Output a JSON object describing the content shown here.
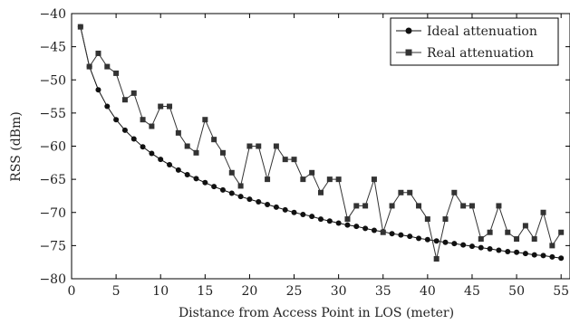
{
  "chart_data": {
    "type": "line",
    "xlabel": "Distance from Access Point in LOS (meter)",
    "ylabel": "RSS (dBm)",
    "xlim": [
      0,
      56
    ],
    "ylim": [
      -80,
      -40
    ],
    "xticks": [
      0,
      5,
      10,
      15,
      20,
      25,
      30,
      35,
      40,
      45,
      50,
      55
    ],
    "yticks": [
      -80,
      -75,
      -70,
      -65,
      -60,
      -55,
      -50,
      -45,
      -40
    ],
    "xtick_labels": [
      "0",
      "5",
      "10",
      "15",
      "20",
      "25",
      "30",
      "35",
      "40",
      "45",
      "50",
      "55"
    ],
    "ytick_labels": [
      "−80",
      "−75",
      "−70",
      "−65",
      "−60",
      "−55",
      "−50",
      "−45",
      "−40"
    ],
    "grid": false,
    "legend_position": "top-right",
    "x": [
      1,
      2,
      3,
      4,
      5,
      6,
      7,
      8,
      9,
      10,
      11,
      12,
      13,
      14,
      15,
      16,
      17,
      18,
      19,
      20,
      21,
      22,
      23,
      24,
      25,
      26,
      27,
      28,
      29,
      30,
      31,
      32,
      33,
      34,
      35,
      36,
      37,
      38,
      39,
      40,
      41,
      42,
      43,
      44,
      45,
      46,
      47,
      48,
      49,
      50,
      51,
      52,
      53,
      54,
      55
    ],
    "series": [
      {
        "name": "Ideal attenuation",
        "marker": "circle",
        "color": "#111111",
        "values": [
          -42.0,
          -48.0,
          -51.5,
          -54.0,
          -56.0,
          -57.6,
          -58.9,
          -60.1,
          -61.1,
          -62.0,
          -62.8,
          -63.6,
          -64.3,
          -64.9,
          -65.5,
          -66.1,
          -66.6,
          -67.1,
          -67.6,
          -68.0,
          -68.4,
          -68.8,
          -69.2,
          -69.6,
          -70.0,
          -70.3,
          -70.6,
          -71.0,
          -71.3,
          -71.6,
          -71.9,
          -72.1,
          -72.4,
          -72.7,
          -72.9,
          -73.2,
          -73.4,
          -73.6,
          -73.9,
          -74.1,
          -74.3,
          -74.5,
          -74.7,
          -74.9,
          -75.1,
          -75.3,
          -75.5,
          -75.7,
          -75.9,
          -76.0,
          -76.2,
          -76.4,
          -76.5,
          -76.7,
          -76.9
        ]
      },
      {
        "name": "Real attenuation",
        "marker": "square",
        "color": "#333333",
        "values": [
          -42,
          -48,
          -46,
          -48,
          -49,
          -53,
          -52,
          -56,
          -57,
          -54,
          -54,
          -58,
          -60,
          -61,
          -56,
          -59,
          -61,
          -64,
          -66,
          -60,
          -60,
          -65,
          -60,
          -62,
          -62,
          -65,
          -64,
          -67,
          -65,
          -65,
          -71,
          -69,
          -69,
          -65,
          -73,
          -69,
          -67,
          -67,
          -69,
          -71,
          -77,
          -71,
          -67,
          -69,
          -69,
          -74,
          -73,
          -69,
          -73,
          -74,
          -72,
          -74,
          -70,
          -75,
          -73
        ]
      }
    ]
  }
}
